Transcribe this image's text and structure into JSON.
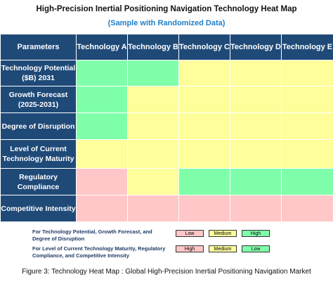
{
  "title": "High-Precision Inertial Positioning Navigation Technology Heat Map",
  "subtitle": "(Sample with Randomized Data)",
  "colors": {
    "header_bg": "#1f4a78",
    "low_pink": "#ffc7c7",
    "medium_yellow": "#fefe9b",
    "high_green": "#80ffaa"
  },
  "chart_data": {
    "type": "heatmap",
    "corner_label": "Parameters",
    "columns": [
      "Technology A",
      "Technology B",
      "Technology C",
      "Technology D",
      "Technology E"
    ],
    "rows": [
      {
        "label": "Technology Potential ($B) 2031",
        "values": [
          "High",
          "High",
          "Medium",
          "Medium",
          "Medium"
        ]
      },
      {
        "label": "Growth Forecast (2025-2031)",
        "values": [
          "High",
          "Medium",
          "Medium",
          "Medium",
          "Medium"
        ]
      },
      {
        "label": "Degree of Disruption",
        "values": [
          "High",
          "Medium",
          "Medium",
          "Medium",
          "Medium"
        ]
      },
      {
        "label": "Level of Current Technology Maturity",
        "values": [
          "Medium",
          "Medium",
          "Medium",
          "Medium",
          "Medium"
        ]
      },
      {
        "label": "Regulatory Compliance",
        "values": [
          "High",
          "Medium",
          "Low",
          "Low",
          "Low"
        ]
      },
      {
        "label": "Competitive Intensity",
        "values": [
          "High",
          "High",
          "High",
          "High",
          "High"
        ]
      }
    ]
  },
  "legend": {
    "group1_text": "For Technology Potential, Growth Forecast, and Degree of Disruption",
    "group1_chips": [
      {
        "label": "Low",
        "color": "#ffc7c7"
      },
      {
        "label": "Medium",
        "color": "#fefe9b"
      },
      {
        "label": "High",
        "color": "#80ffaa"
      }
    ],
    "group2_text": "For Level of Current Technology Maturity, Regulatory Compliance, and Competitive Intensity",
    "group2_chips": [
      {
        "label": "High",
        "color": "#ffc7c7"
      },
      {
        "label": "Medium",
        "color": "#fefe9b"
      },
      {
        "label": "Low",
        "color": "#80ffaa"
      }
    ]
  },
  "caption": "Figure 3: Technology Heat Map : Global High-Precision Inertial Positioning Navigation Market"
}
